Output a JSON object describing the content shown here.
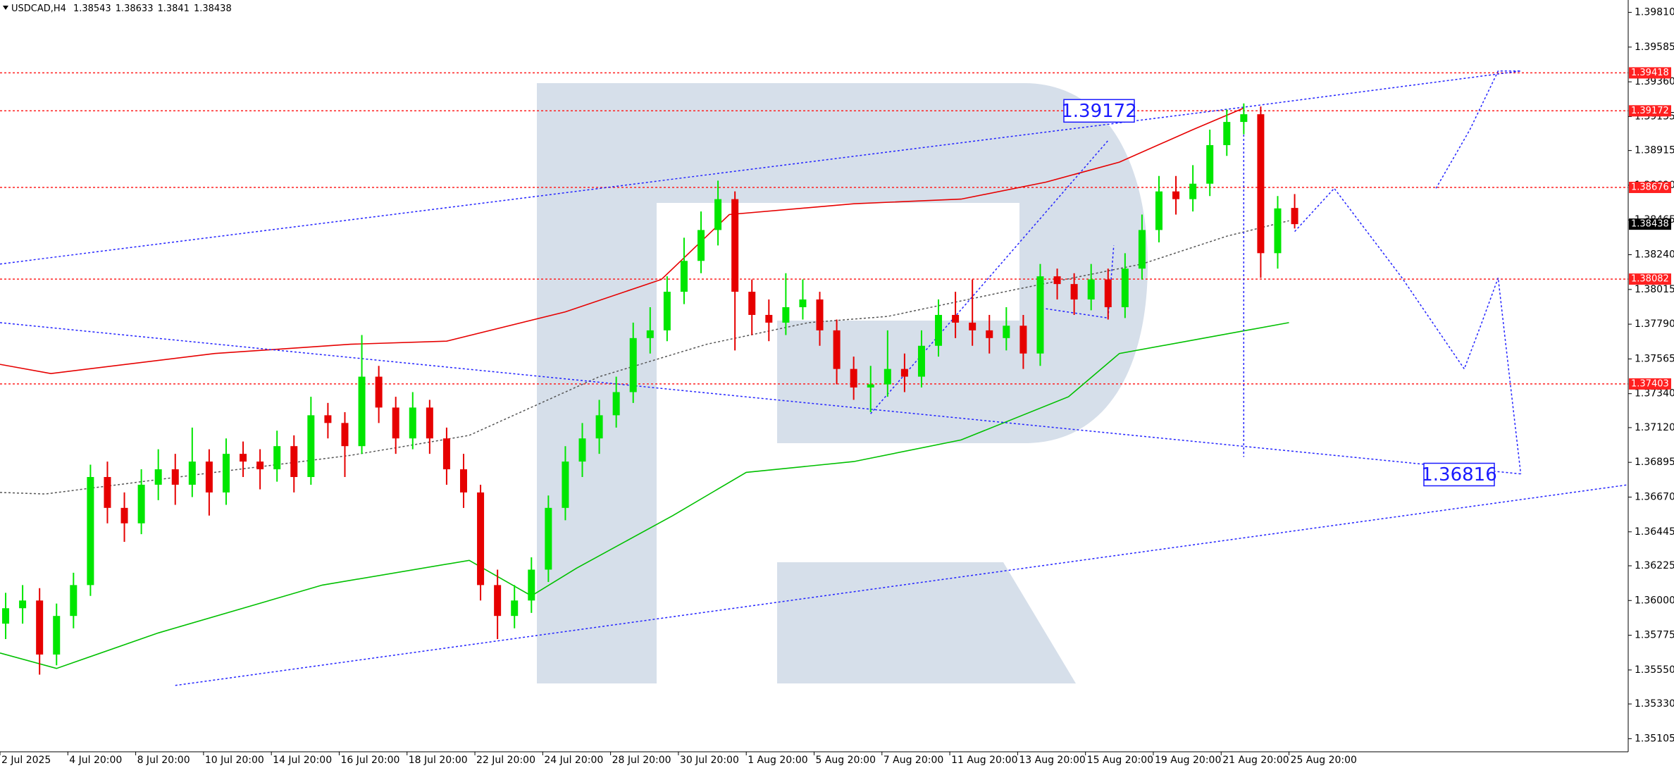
{
  "chart_data": {
    "type": "candlestick",
    "symbol": "USDCAD,H4",
    "ylim": [
      1.3502,
      1.3989
    ],
    "yticks": [
      {
        "value": 1.3981,
        "label": "1.39810"
      },
      1.39585,
      {
        "value": 1.3936,
        "label": "1.39360"
      },
      1.39135,
      1.38915,
      {
        "value": 1.3869,
        "label": "1.38690"
      },
      1.38465,
      {
        "value": 1.3824,
        "label": "1.38240"
      },
      1.38015,
      {
        "value": 1.3779,
        "label": "1.37790"
      },
      1.37565,
      {
        "value": 1.3734,
        "label": "1.37340"
      },
      {
        "value": 1.3712,
        "label": "1.37120"
      },
      1.36895,
      {
        "value": 1.3667,
        "label": "1.36670"
      },
      1.36445,
      1.36225,
      {
        "value": 1.36,
        "label": "1.36000"
      },
      1.35775,
      {
        "value": 1.3555,
        "label": "1.35550"
      },
      {
        "value": 1.3533,
        "label": "1.35330"
      },
      1.35105
    ],
    "xlim": [
      0,
      288
    ],
    "xticks": [
      {
        "value": 0,
        "label": "2 Jul 2025"
      },
      {
        "value": 12,
        "label": "4 Jul 20:00"
      },
      {
        "value": 24,
        "label": "8 Jul 20:00"
      },
      {
        "value": 36,
        "label": "10 Jul 20:00"
      },
      {
        "value": 48,
        "label": "14 Jul 20:00"
      },
      {
        "value": 60,
        "label": "16 Jul 20:00"
      },
      {
        "value": 72,
        "label": "18 Jul 20:00"
      },
      {
        "value": 84,
        "label": "22 Jul 20:00"
      },
      {
        "value": 96,
        "label": "24 Jul 20:00"
      },
      {
        "value": 108,
        "label": "28 Jul 20:00"
      },
      {
        "value": 120,
        "label": "30 Jul 20:00"
      },
      {
        "value": 132,
        "label": "1 Aug 20:00"
      },
      {
        "value": 144,
        "label": "5 Aug 20:00"
      },
      {
        "value": 156,
        "label": "7 Aug 20:00"
      },
      {
        "value": 168,
        "label": "11 Aug 20:00"
      },
      {
        "value": 180,
        "label": "13 Aug 20:00"
      },
      {
        "value": 192,
        "label": "15 Aug 20:00"
      },
      {
        "value": 204,
        "label": "19 Aug 20:00"
      },
      {
        "value": 216,
        "label": "21 Aug 20:00"
      },
      {
        "value": 228,
        "label": "25 Aug 20:00"
      }
    ],
    "candles": {
      "up_color": "#00e600",
      "down_color": "#e60000",
      "x": [
        1,
        4,
        7,
        10,
        13,
        16,
        19,
        22,
        25,
        28,
        31,
        34,
        37,
        40,
        43,
        46,
        49,
        52,
        55,
        58,
        61,
        64,
        67,
        70,
        73,
        76,
        79,
        82,
        85,
        88,
        91,
        94,
        97,
        100,
        103,
        106,
        109,
        112,
        115,
        118,
        121,
        124,
        127,
        130,
        133,
        136,
        139,
        142,
        145,
        148,
        151,
        154,
        157,
        160,
        163,
        166,
        169,
        172,
        175,
        178,
        181,
        184,
        187,
        190,
        193,
        196,
        199,
        202,
        205,
        208,
        211,
        214,
        217,
        220,
        223,
        226,
        229
      ],
      "open": [
        1.3585,
        1.3595,
        1.36,
        1.3565,
        1.359,
        1.361,
        1.368,
        1.366,
        1.365,
        1.3675,
        1.3685,
        1.3675,
        1.369,
        1.367,
        1.3695,
        1.369,
        1.3685,
        1.37,
        1.368,
        1.372,
        1.3715,
        1.37,
        1.3745,
        1.3725,
        1.3705,
        1.3725,
        1.3705,
        1.3685,
        1.367,
        1.361,
        1.359,
        1.36,
        1.362,
        1.366,
        1.369,
        1.3705,
        1.372,
        1.3735,
        1.377,
        1.3775,
        1.38,
        1.382,
        1.384,
        1.386,
        1.38,
        1.3785,
        1.378,
        1.379,
        1.3795,
        1.3775,
        1.375,
        1.3738,
        1.374,
        1.375,
        1.3745,
        1.3765,
        1.3785,
        1.378,
        1.3775,
        1.377,
        1.3778,
        1.376,
        1.381,
        1.3805,
        1.3795,
        1.3808,
        1.379,
        1.3815,
        1.384,
        1.3865,
        1.386,
        1.387,
        1.3895,
        1.391,
        1.3915,
        1.3825,
        1.38543
      ],
      "high": [
        1.3605,
        1.361,
        1.3608,
        1.3598,
        1.3618,
        1.3688,
        1.369,
        1.367,
        1.3685,
        1.3698,
        1.3695,
        1.3712,
        1.3698,
        1.3705,
        1.3703,
        1.3698,
        1.371,
        1.3707,
        1.3732,
        1.3728,
        1.3722,
        1.3772,
        1.3752,
        1.3732,
        1.3735,
        1.373,
        1.3712,
        1.3695,
        1.3675,
        1.362,
        1.361,
        1.3628,
        1.3668,
        1.37,
        1.3715,
        1.373,
        1.3745,
        1.378,
        1.379,
        1.381,
        1.3835,
        1.3852,
        1.3872,
        1.3865,
        1.3808,
        1.3795,
        1.3812,
        1.3808,
        1.38,
        1.3782,
        1.3758,
        1.3752,
        1.3775,
        1.376,
        1.3775,
        1.3795,
        1.38,
        1.3808,
        1.3785,
        1.379,
        1.3785,
        1.3818,
        1.3815,
        1.3812,
        1.3818,
        1.3815,
        1.3825,
        1.385,
        1.3875,
        1.3875,
        1.3882,
        1.3905,
        1.3918,
        1.3922,
        1.392,
        1.3862,
        1.38633
      ],
      "low": [
        1.3575,
        1.3585,
        1.3552,
        1.3558,
        1.3582,
        1.3603,
        1.365,
        1.3638,
        1.3643,
        1.3665,
        1.3662,
        1.3667,
        1.3655,
        1.3662,
        1.368,
        1.3672,
        1.3677,
        1.367,
        1.3675,
        1.3705,
        1.368,
        1.3695,
        1.3715,
        1.3695,
        1.3698,
        1.3695,
        1.3675,
        1.366,
        1.36,
        1.3575,
        1.3582,
        1.3592,
        1.3612,
        1.3652,
        1.368,
        1.3695,
        1.3712,
        1.3728,
        1.376,
        1.3768,
        1.3792,
        1.3812,
        1.383,
        1.3762,
        1.3772,
        1.3768,
        1.3772,
        1.3782,
        1.3765,
        1.374,
        1.373,
        1.3722,
        1.3732,
        1.3735,
        1.3738,
        1.3758,
        1.377,
        1.3765,
        1.376,
        1.3762,
        1.375,
        1.3752,
        1.3795,
        1.3785,
        1.3788,
        1.3782,
        1.3783,
        1.3808,
        1.3832,
        1.385,
        1.3852,
        1.3862,
        1.3888,
        1.3902,
        1.3809,
        1.3815,
        1.3841
      ],
      "close": [
        1.3595,
        1.36,
        1.3565,
        1.359,
        1.361,
        1.368,
        1.366,
        1.365,
        1.3675,
        1.3685,
        1.3675,
        1.369,
        1.367,
        1.3695,
        1.369,
        1.3685,
        1.37,
        1.368,
        1.372,
        1.3715,
        1.37,
        1.3745,
        1.3725,
        1.3705,
        1.3725,
        1.3705,
        1.3685,
        1.367,
        1.361,
        1.359,
        1.36,
        1.362,
        1.366,
        1.369,
        1.3705,
        1.372,
        1.3735,
        1.377,
        1.3775,
        1.38,
        1.382,
        1.384,
        1.386,
        1.38,
        1.3785,
        1.378,
        1.379,
        1.3795,
        1.3775,
        1.375,
        1.3738,
        1.374,
        1.375,
        1.3745,
        1.3765,
        1.3785,
        1.378,
        1.3775,
        1.377,
        1.3778,
        1.376,
        1.381,
        1.3805,
        1.3795,
        1.3808,
        1.379,
        1.3815,
        1.384,
        1.3865,
        1.386,
        1.387,
        1.3895,
        1.391,
        1.3915,
        1.3825,
        1.3854,
        1.38438
      ]
    },
    "lines": [
      {
        "color": "#e60000",
        "dash": false,
        "x": [
          0,
          9,
          38,
          62,
          79,
          100,
          117,
          129,
          151,
          170,
          185,
          198,
          211,
          220
        ],
        "values": [
          1.3753,
          1.3747,
          1.376,
          1.3766,
          1.3768,
          1.3787,
          1.3808,
          1.385,
          1.3857,
          1.386,
          1.3871,
          1.3884,
          1.3905,
          1.3919
        ]
      },
      {
        "color": "#00c000",
        "dash": false,
        "x": [
          0,
          10,
          28,
          57,
          83,
          94,
          102,
          119,
          132,
          151,
          170,
          189,
          198,
          213,
          228
        ],
        "values": [
          1.3566,
          1.3556,
          1.3579,
          1.361,
          1.3626,
          1.3603,
          1.3621,
          1.3655,
          1.3683,
          1.369,
          1.3704,
          1.3732,
          1.376,
          1.377,
          1.378
        ]
      },
      {
        "color": "#555555",
        "dash": true,
        "x": [
          0,
          8,
          38,
          62,
          83,
          106,
          125,
          143,
          157,
          179,
          202,
          217,
          228
        ],
        "values": [
          1.367,
          1.3669,
          1.3683,
          1.3694,
          1.3707,
          1.3745,
          1.3766,
          1.378,
          1.3784,
          1.3801,
          1.3818,
          1.3836,
          1.3846
        ]
      },
      {
        "color": "#2424ff",
        "dash": true,
        "x": [
          0,
          223,
          269
        ],
        "values": [
          1.3818,
          1.3921,
          1.3943
        ]
      },
      {
        "color": "#2424ff",
        "dash": true,
        "x": [
          0,
          269
        ],
        "values": [
          1.378,
          1.3682
        ]
      },
      {
        "color": "#2424ff",
        "dash": true,
        "x": [
          31,
          288
        ],
        "values": [
          1.3545,
          1.3675
        ]
      },
      {
        "color": "#2424ff",
        "dash": true,
        "x": [
          220,
          220
        ],
        "values": [
          1.3921,
          1.3693
        ]
      },
      {
        "color": "#2424ff",
        "dash": true,
        "x": [
          229,
          236,
          248,
          259,
          262,
          265,
          267,
          269
        ],
        "values": [
          1.3839,
          1.3867,
          1.3809,
          1.375,
          1.3779,
          1.3809,
          1.3745,
          1.3682
        ]
      },
      {
        "color": "#2424ff",
        "dash": true,
        "x": [
          254,
          260,
          265,
          269
        ],
        "values": [
          1.3867,
          1.3905,
          1.3943,
          1.3943
        ]
      },
      {
        "color": "#2424ff",
        "dash": true,
        "x": [
          154,
          196
        ],
        "values": [
          1.3721,
          1.3898
        ]
      },
      {
        "color": "#2424ff",
        "dash": true,
        "x": [
          185,
          196,
          197
        ],
        "values": [
          1.3789,
          1.3783,
          1.383
        ]
      }
    ],
    "levels": {
      "color": "#ff2020",
      "values": [
        1.39418,
        1.39172,
        1.38676,
        1.38082,
        1.37403
      ]
    },
    "forecast_target": 1.36816,
    "annotation_color": "#1a1aff"
  }
}
